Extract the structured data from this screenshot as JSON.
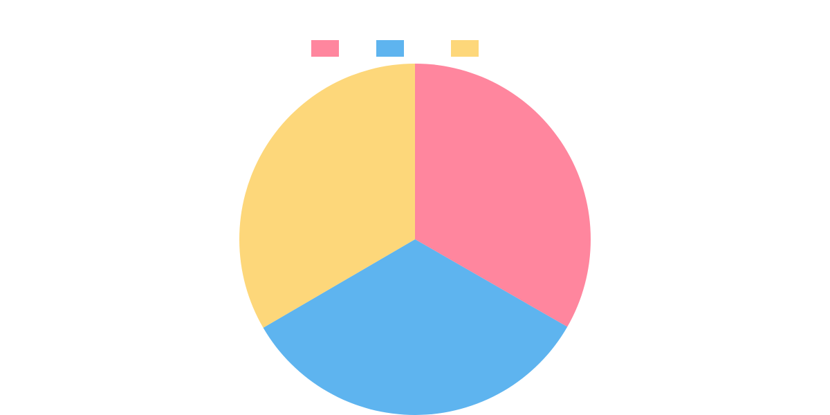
{
  "chart_data": {
    "type": "pie",
    "categories": [
      "",
      "",
      ""
    ],
    "values": [
      33.3,
      33.3,
      33.4
    ],
    "colors": [
      "#FF869E",
      "#5EB4EF",
      "#FDD77A"
    ],
    "legend": {
      "position": "top"
    },
    "start_angle": "top",
    "direction": "clockwise"
  }
}
